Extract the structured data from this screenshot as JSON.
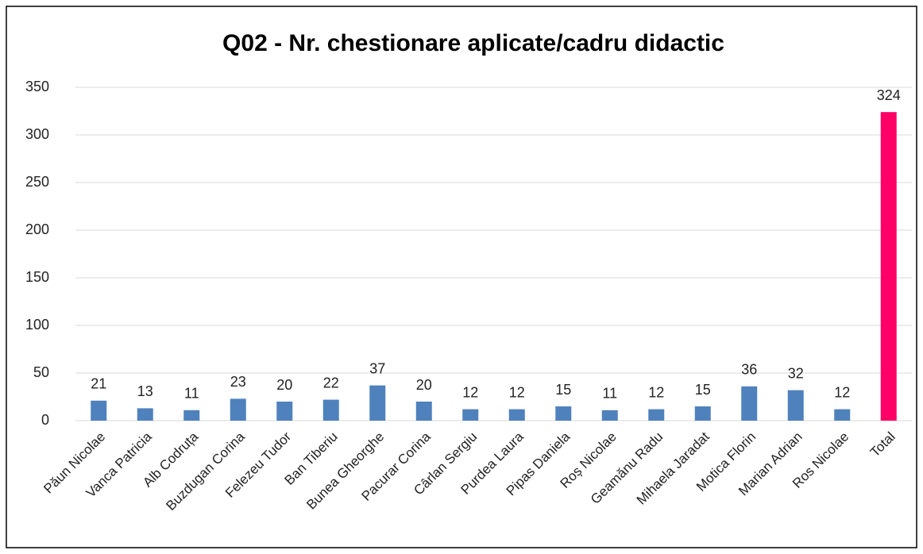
{
  "chart_data": {
    "type": "bar",
    "title": "Q02 - Nr. chestionare aplicate/cadru didactic",
    "categories": [
      "Păun Nicolae",
      "Vanca Patricia",
      "Alb Codruța",
      "Buzdugan Corina",
      "Felezeu Tudor",
      "Ban Tiberiu",
      "Bunea Gheorghe",
      "Pacurar Corina",
      "Cârlan Sergiu",
      "Purdea Laura",
      "Pipas Daniela",
      "Roș Nicolae",
      "Geamănu Radu",
      "Mihaela Jaradat",
      "Motica Florin",
      "Marian Adrian",
      "Ros Nicolae",
      "Total"
    ],
    "values": [
      21,
      13,
      11,
      23,
      20,
      22,
      37,
      20,
      12,
      12,
      15,
      11,
      12,
      15,
      36,
      32,
      12,
      324
    ],
    "colors": [
      "#4f81bd",
      "#4f81bd",
      "#4f81bd",
      "#4f81bd",
      "#4f81bd",
      "#4f81bd",
      "#4f81bd",
      "#4f81bd",
      "#4f81bd",
      "#4f81bd",
      "#4f81bd",
      "#4f81bd",
      "#4f81bd",
      "#4f81bd",
      "#4f81bd",
      "#4f81bd",
      "#4f81bd",
      "#ff0066"
    ],
    "ylim": [
      0,
      350
    ],
    "yticks": [
      0,
      50,
      100,
      150,
      200,
      250,
      300,
      350
    ],
    "grid": true
  }
}
